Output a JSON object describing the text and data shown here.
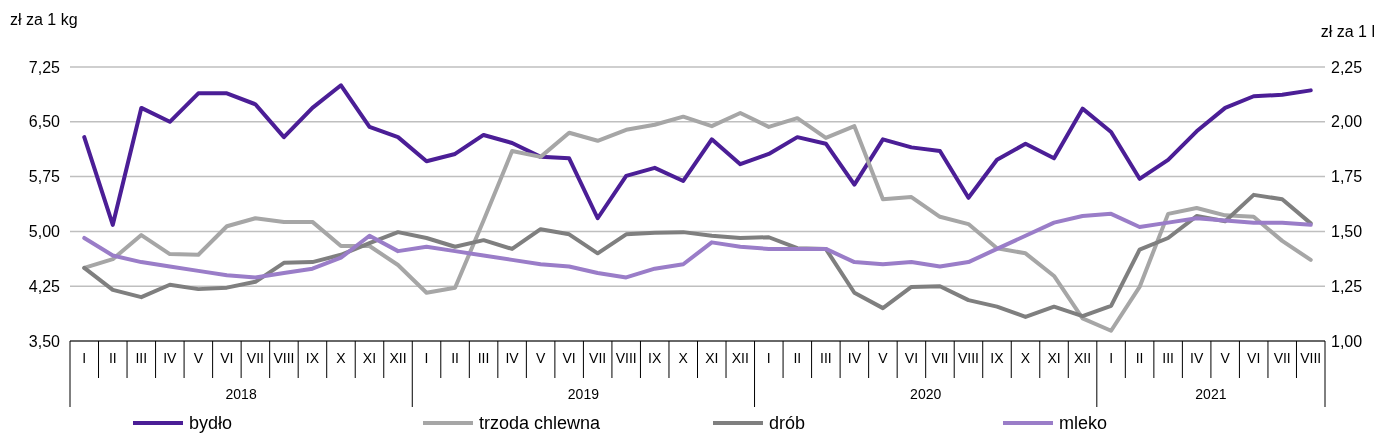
{
  "chart_data": {
    "type": "line",
    "ylabel": "zł za 1 kg",
    "y2label": "zł za 1 l",
    "categories": [
      "I",
      "II",
      "III",
      "IV",
      "V",
      "VI",
      "VII",
      "VIII",
      "IX",
      "X",
      "XI",
      "XII",
      "I",
      "II",
      "III",
      "IV",
      "V",
      "VI",
      "VII",
      "VIII",
      "IX",
      "X",
      "XI",
      "XII",
      "I",
      "II",
      "III",
      "IV",
      "V",
      "VI",
      "VII",
      "VIII",
      "IX",
      "X",
      "XI",
      "XII",
      "I",
      "II",
      "III",
      "IV",
      "V",
      "VI",
      "VII",
      "VIII"
    ],
    "annotations": [
      "2018",
      "2019",
      "2020",
      "2021"
    ],
    "ylim": [
      3.5,
      7.25
    ],
    "yticks": [
      {
        "value": 3.5,
        "label": "3,50"
      },
      {
        "value": 4.25,
        "label": "4,25"
      },
      {
        "value": 5,
        "label": "5,00"
      },
      {
        "value": 5.75,
        "label": "5,75"
      },
      {
        "value": 6.5,
        "label": "6,50"
      },
      {
        "value": 7.25,
        "label": "7,25"
      }
    ],
    "y2lim": [
      1,
      2.25
    ],
    "y2ticks": [
      {
        "value": 1,
        "label": "1,00"
      },
      {
        "value": 1.25,
        "label": "1,25"
      },
      {
        "value": 1.5,
        "label": "1,50"
      },
      {
        "value": 1.75,
        "label": "1,75"
      },
      {
        "value": 2,
        "label": "2,00"
      },
      {
        "value": 2.25,
        "label": "2,25"
      }
    ],
    "grid": "y",
    "legend": "bottom",
    "line_style": "solid",
    "marker": "none",
    "series": [
      {
        "name": "bydło",
        "color": "#4b1e96",
        "values": [
          6.29,
          5.09,
          6.69,
          6.5,
          6.89,
          6.89,
          6.74,
          6.29,
          6.69,
          7.0,
          6.43,
          6.29,
          5.96,
          6.06,
          6.32,
          6.21,
          6.02,
          6.0,
          5.18,
          5.76,
          5.87,
          5.69,
          6.26,
          5.92,
          6.06,
          6.29,
          6.2,
          5.64,
          6.26,
          6.15,
          6.1,
          5.46,
          5.98,
          6.2,
          6.0,
          6.68,
          6.36,
          5.72,
          5.98,
          6.37,
          6.69,
          6.85,
          6.87,
          6.93
        ]
      },
      {
        "name": "trzoda chlewna",
        "color": "#a6a6a6",
        "values": [
          4.5,
          4.62,
          4.95,
          4.69,
          4.68,
          5.07,
          5.18,
          5.13,
          5.13,
          4.8,
          4.8,
          4.54,
          4.16,
          4.23,
          5.15,
          6.1,
          6.02,
          6.35,
          6.24,
          6.39,
          6.46,
          6.57,
          6.44,
          6.62,
          6.43,
          6.55,
          6.28,
          6.44,
          5.44,
          5.47,
          5.2,
          5.1,
          4.77,
          4.7,
          4.39,
          3.81,
          3.64,
          4.24,
          5.24,
          5.32,
          5.22,
          5.2,
          4.87,
          4.61
        ]
      },
      {
        "name": "drób",
        "color": "#7f7f7f",
        "values": [
          4.5,
          4.2,
          4.1,
          4.27,
          4.21,
          4.23,
          4.31,
          4.57,
          4.58,
          4.68,
          4.84,
          4.99,
          4.91,
          4.79,
          4.88,
          4.76,
          5.03,
          4.96,
          4.7,
          4.96,
          4.98,
          4.99,
          4.94,
          4.91,
          4.92,
          4.77,
          4.76,
          4.16,
          3.95,
          4.24,
          4.25,
          4.06,
          3.97,
          3.83,
          3.97,
          3.84,
          3.98,
          4.75,
          4.91,
          5.21,
          5.14,
          5.5,
          5.44,
          5.11
        ]
      },
      {
        "name": "mleko",
        "color": "#9a7dc8",
        "axis": "y2",
        "values": [
          1.47,
          1.39,
          1.36,
          1.34,
          1.32,
          1.3,
          1.29,
          1.31,
          1.33,
          1.38,
          1.48,
          1.41,
          1.43,
          1.41,
          1.39,
          1.37,
          1.35,
          1.34,
          1.31,
          1.29,
          1.33,
          1.35,
          1.45,
          1.43,
          1.42,
          1.42,
          1.42,
          1.36,
          1.35,
          1.36,
          1.34,
          1.36,
          1.42,
          1.48,
          1.54,
          1.57,
          1.58,
          1.52,
          1.54,
          1.56,
          1.55,
          1.54,
          1.54,
          1.53
        ]
      }
    ]
  }
}
